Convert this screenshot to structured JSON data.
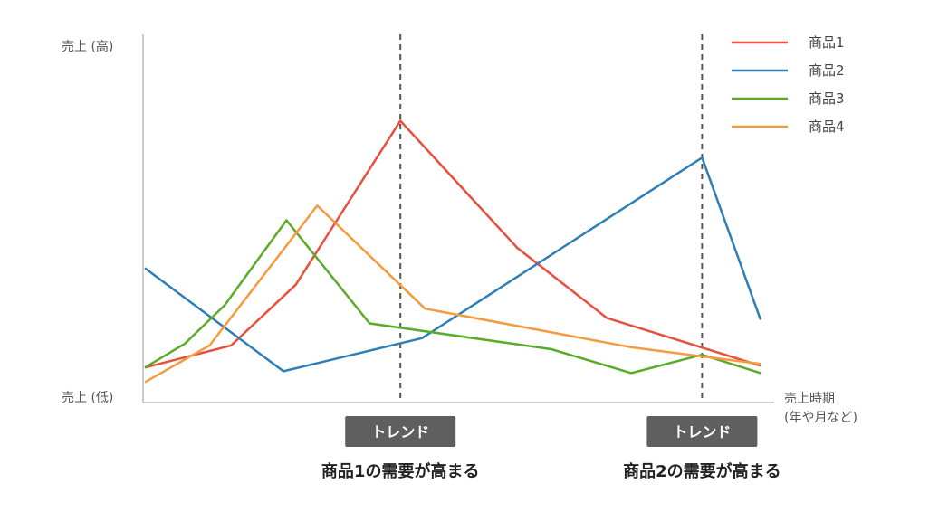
{
  "chart_data": {
    "type": "line",
    "y_high_label": "売上 (高)",
    "y_low_label": "売上 (低)",
    "x_label_line1": "売上時期",
    "x_label_line2": "(年や月など)",
    "xlim": [
      0,
      100
    ],
    "ylim": [
      0,
      100
    ],
    "grid": false,
    "legend_position": "top-right",
    "series": [
      {
        "name": "商品1",
        "color": "#e8503e",
        "x": [
          0,
          14,
          24.5,
          41.5,
          60.5,
          75,
          100
        ],
        "y": [
          9.5,
          15.5,
          32,
          76.5,
          42,
          23,
          10
        ]
      },
      {
        "name": "商品2",
        "color": "#2f7fb6",
        "x": [
          0,
          22.5,
          45,
          90.5,
          100
        ],
        "y": [
          36.5,
          8.5,
          17.5,
          66.5,
          22.5
        ]
      },
      {
        "name": "商品3",
        "color": "#5bab2a",
        "x": [
          0,
          6.5,
          13,
          23,
          36.5,
          66,
          79,
          90.5,
          100
        ],
        "y": [
          9.5,
          16,
          26.5,
          49.5,
          21.5,
          14.5,
          8,
          13,
          8
        ]
      },
      {
        "name": "商品4",
        "color": "#f59a3e",
        "x": [
          0,
          10.5,
          28,
          45.5,
          79,
          100
        ],
        "y": [
          5.5,
          15.5,
          53.5,
          25.5,
          15,
          10.5
        ]
      }
    ],
    "trend_markers": [
      {
        "x": 41.5,
        "badge": "トレンド",
        "annotation": "商品1の需要が高まる"
      },
      {
        "x": 90.5,
        "badge": "トレンド",
        "annotation": "商品2の需要が高まる"
      }
    ]
  }
}
